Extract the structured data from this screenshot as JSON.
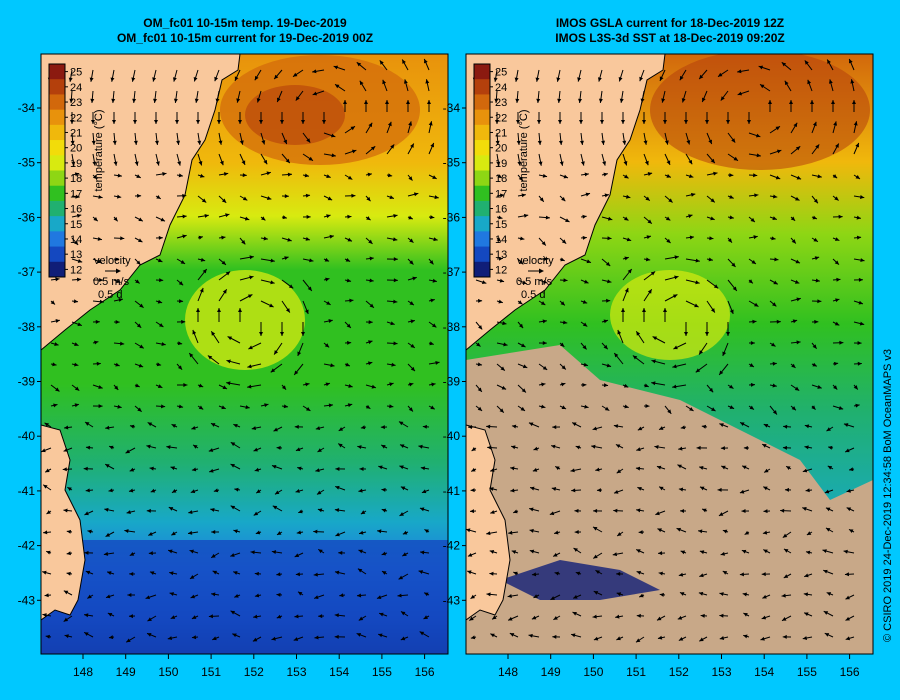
{
  "left_panel": {
    "title_line1": "OM_fc01 10-15m temp. 19-Dec-2019",
    "title_line2": "OM_fc01 10-15m current for 19-Dec-2019 00Z"
  },
  "right_panel": {
    "title_line1": "IMOS GSLA current for 18-Dec-2019 12Z",
    "title_line2": "IMOS L3S-3d SST at 18-Dec-2019 09:20Z"
  },
  "colorbar": {
    "label": "temperature (°C)",
    "ticks": [
      "25",
      "24",
      "23",
      "22",
      "21",
      "20",
      "19",
      "18",
      "17",
      "16",
      "15",
      "14",
      "13",
      "12"
    ],
    "colors": [
      "#8b1a10",
      "#b4400c",
      "#d2680c",
      "#e8920c",
      "#f0b80c",
      "#f2dc0a",
      "#d8ea10",
      "#8ed614",
      "#30c020",
      "#20b070",
      "#18a8c8",
      "#2078e0",
      "#1448c0",
      "#101e78"
    ]
  },
  "velocity_key": {
    "label": "velocity",
    "speed": "0.5 m/s",
    "duration": "0.5 d"
  },
  "axes": {
    "lon_ticks": [
      "148",
      "149",
      "150",
      "151",
      "152",
      "153",
      "154",
      "155",
      "156"
    ],
    "lat_ticks": [
      "-34",
      "-35",
      "-36",
      "-37",
      "-38",
      "-39",
      "-40",
      "-41",
      "-42",
      "-43"
    ]
  },
  "land_color": "#f9c89c",
  "no_data_color": "#c8a888",
  "credit": "© CSIRO 2019   24-Dec-2019 12:34:58 BoM OceanMAPS v3"
}
